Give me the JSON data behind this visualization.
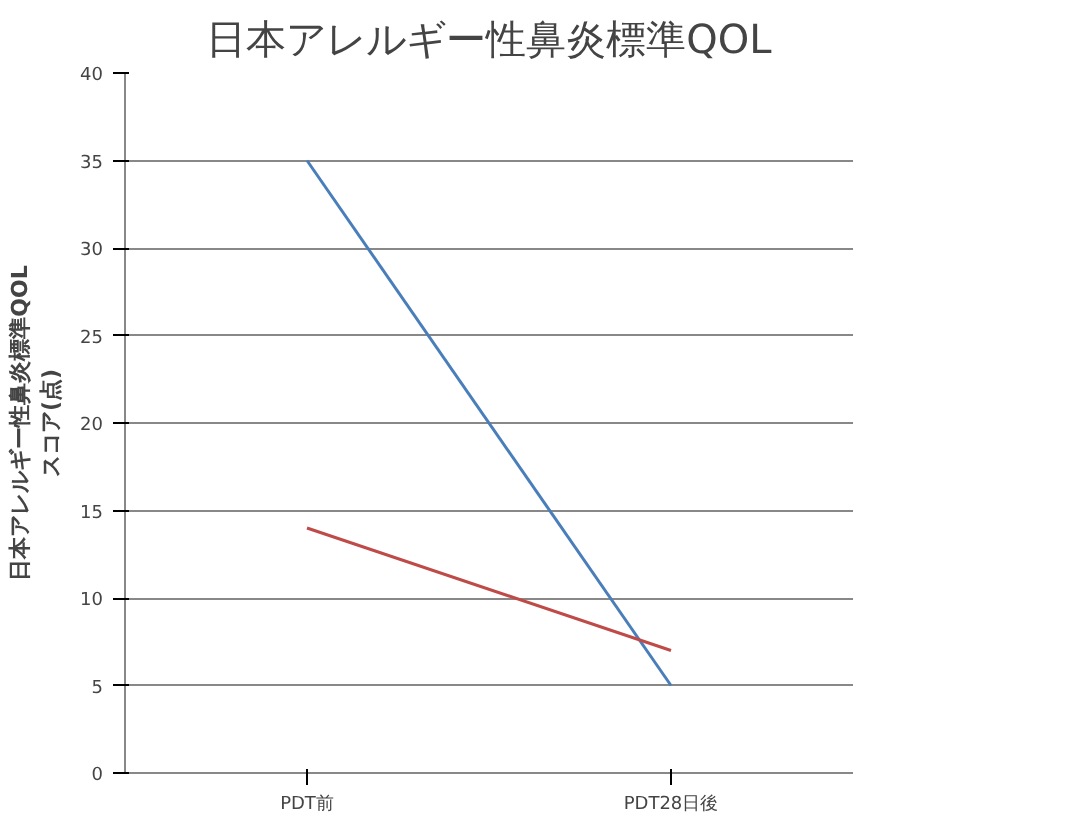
{
  "chart_data": {
    "type": "line",
    "title": "日本アレルギー性鼻炎標準QOL",
    "ylabel": "日本アレルギー性鼻炎標準QOL\nスコア(点)",
    "categories": [
      "PDT前",
      "PDT28日後"
    ],
    "series": [
      {
        "color": "#4a7ebb",
        "values": [
          35,
          5
        ]
      },
      {
        "color": "#be4b48",
        "values": [
          14,
          7
        ]
      }
    ],
    "ylim": [
      0,
      40
    ],
    "yticks": [
      0,
      5,
      10,
      15,
      20,
      25,
      30,
      35,
      40
    ],
    "grid": "y",
    "marker": "none",
    "line_style": "solid"
  }
}
